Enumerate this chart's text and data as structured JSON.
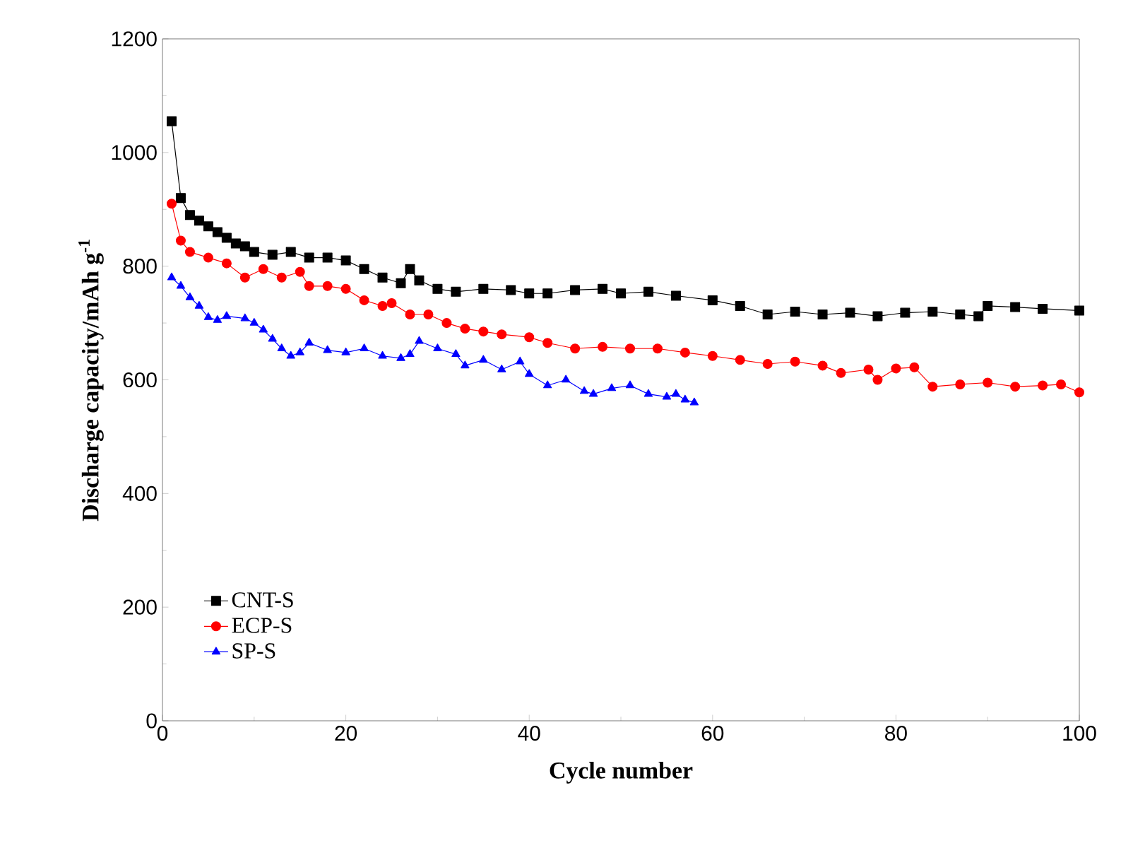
{
  "chart_data": {
    "type": "line",
    "xlabel": "Cycle number",
    "ylabel": "Discharge capacity/mAh g$^{-1}$",
    "xlim": [
      0,
      100
    ],
    "ylim": [
      0,
      1200
    ],
    "xticks": [
      0,
      20,
      40,
      60,
      80,
      100
    ],
    "yticks": [
      0,
      200,
      400,
      600,
      800,
      1000,
      1200
    ],
    "legend": "bottom left",
    "grid": false,
    "series": [
      {
        "name": "CNT-S",
        "color": "#000000",
        "marker": "square",
        "x": [
          1,
          2,
          3,
          4,
          5,
          6,
          7,
          8,
          9,
          10,
          12,
          14,
          16,
          18,
          20,
          22,
          24,
          26,
          27,
          28,
          30,
          32,
          35,
          38,
          40,
          42,
          45,
          48,
          50,
          53,
          56,
          60,
          63,
          66,
          69,
          72,
          75,
          78,
          81,
          84,
          87,
          89,
          90,
          93,
          96,
          100
        ],
        "values": [
          1055,
          920,
          890,
          880,
          870,
          860,
          850,
          840,
          835,
          825,
          820,
          825,
          815,
          815,
          810,
          795,
          780,
          770,
          795,
          775,
          760,
          755,
          760,
          758,
          752,
          752,
          758,
          760,
          752,
          755,
          748,
          740,
          730,
          715,
          720,
          715,
          718,
          712,
          718,
          720,
          715,
          712,
          730,
          728,
          725,
          722
        ]
      },
      {
        "name": "ECP-S",
        "color": "#ff0000",
        "marker": "circle",
        "x": [
          1,
          2,
          3,
          5,
          7,
          9,
          11,
          13,
          15,
          16,
          18,
          20,
          22,
          24,
          25,
          27,
          29,
          31,
          33,
          35,
          37,
          40,
          42,
          45,
          48,
          51,
          54,
          57,
          60,
          63,
          66,
          69,
          72,
          74,
          77,
          78,
          80,
          82,
          84,
          87,
          90,
          93,
          96,
          98,
          100
        ],
        "values": [
          910,
          845,
          825,
          815,
          805,
          780,
          795,
          780,
          790,
          765,
          765,
          760,
          740,
          730,
          735,
          715,
          715,
          700,
          690,
          685,
          680,
          675,
          665,
          655,
          658,
          655,
          655,
          648,
          642,
          635,
          628,
          632,
          625,
          612,
          618,
          600,
          620,
          622,
          588,
          592,
          595,
          588,
          590,
          592,
          578
        ]
      },
      {
        "name": "SP-S",
        "color": "#0000ff",
        "marker": "triangle",
        "x": [
          1,
          2,
          3,
          4,
          5,
          6,
          7,
          9,
          10,
          11,
          12,
          13,
          14,
          15,
          16,
          18,
          20,
          22,
          24,
          26,
          27,
          28,
          30,
          32,
          33,
          35,
          37,
          39,
          40,
          42,
          44,
          46,
          47,
          49,
          51,
          53,
          55,
          56,
          57,
          58
        ],
        "values": [
          780,
          765,
          745,
          730,
          710,
          705,
          712,
          708,
          700,
          688,
          672,
          655,
          642,
          648,
          665,
          652,
          648,
          655,
          642,
          638,
          645,
          668,
          655,
          645,
          625,
          635,
          618,
          632,
          610,
          590,
          600,
          580,
          575,
          585,
          590,
          575,
          570,
          575,
          565,
          560
        ]
      }
    ]
  }
}
